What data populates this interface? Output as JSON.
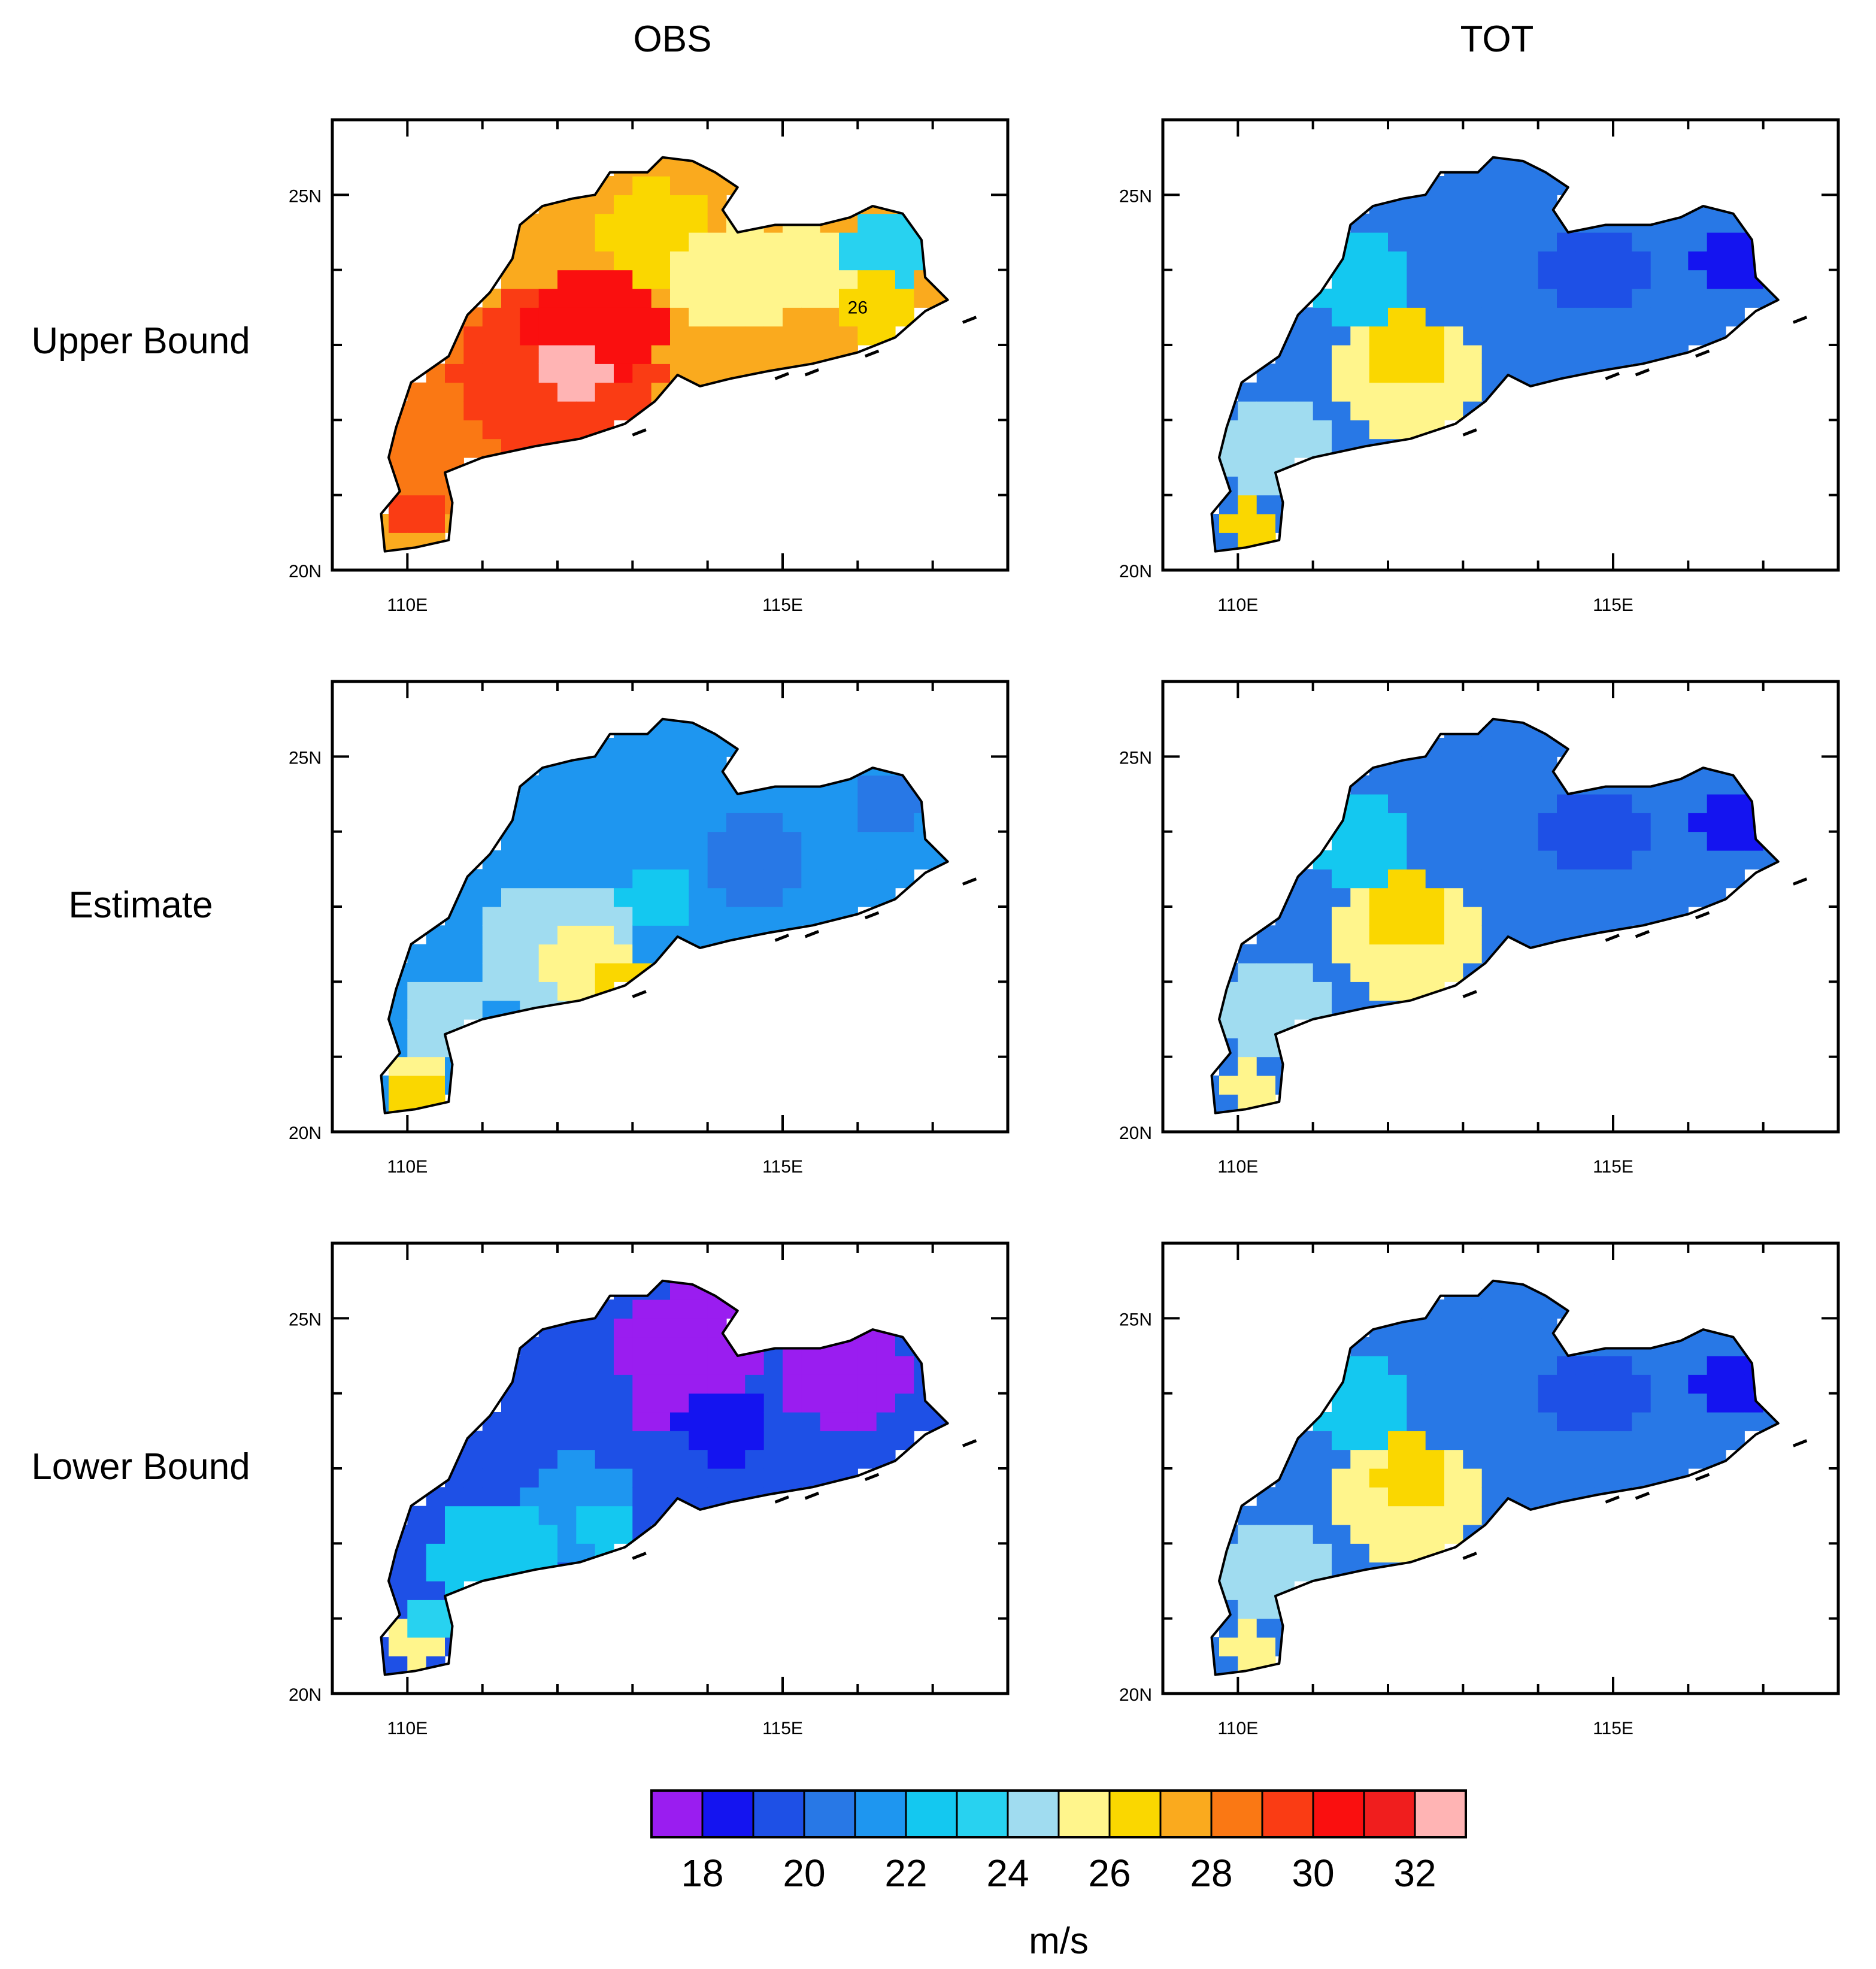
{
  "columns": [
    "OBS",
    "TOT"
  ],
  "rows": [
    "Upper Bound",
    "Estimate",
    "Lower Bound"
  ],
  "axis": {
    "lat_ticks": [
      {
        "value": 20,
        "label": "20N"
      },
      {
        "value": 25,
        "label": "25N"
      }
    ],
    "lon_ticks": [
      {
        "value": 110,
        "label": "110E"
      },
      {
        "value": 115,
        "label": "115E"
      }
    ]
  },
  "annotation": {
    "panel": "OBS / Upper Bound",
    "lon": 116,
    "lat": 23.5,
    "text": "26"
  },
  "colorbar": {
    "unit": "m/s",
    "tick_labels": [
      "18",
      "20",
      "22",
      "24",
      "26",
      "28",
      "30",
      "32"
    ],
    "colors": [
      "#9a1df0",
      "#1414f0",
      "#1e50e6",
      "#2878e6",
      "#1e96f0",
      "#14c8f0",
      "#28d2f0",
      "#a0dcf0",
      "#fff58c",
      "#fad700",
      "#faaa1e",
      "#fa7814",
      "#fa3c14",
      "#fa0f0f",
      "#f01e1e",
      "#ffb4b4"
    ]
  },
  "colors": {
    "coast": "#000000",
    "frame": "#000000",
    "background": "#ffffff"
  }
}
